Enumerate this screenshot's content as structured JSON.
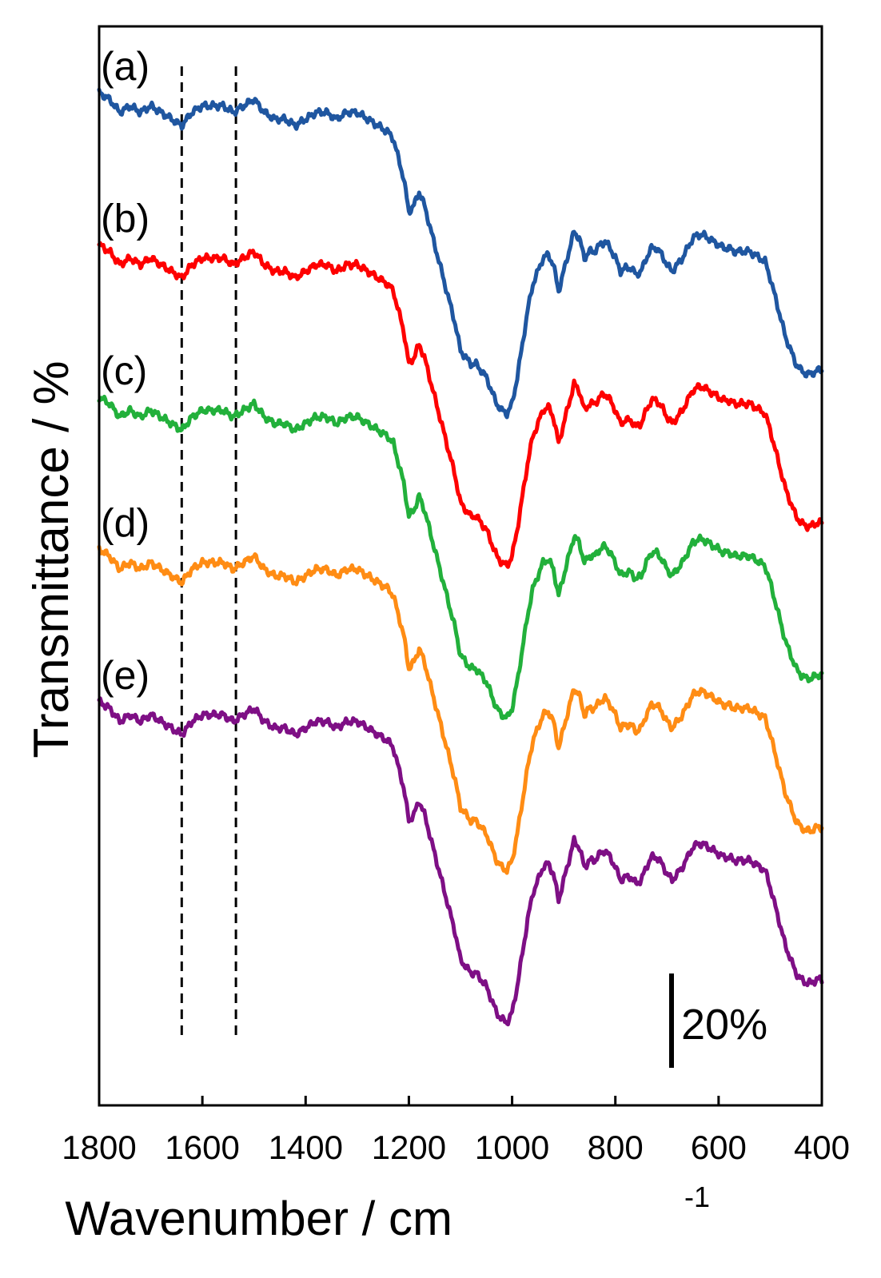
{
  "chart_data": {
    "type": "line",
    "xlabel": "Wavenumber / cm",
    "xlabel_sup": "-1",
    "ylabel": "Transmittance / %",
    "xlim": [
      1800,
      400
    ],
    "x_reversed": true,
    "x_ticks": [
      1800,
      1600,
      1400,
      1200,
      1000,
      800,
      600,
      400
    ],
    "x_tick_labels": [
      "1800",
      "1600",
      "1400",
      "1200",
      "1000",
      "800",
      "600",
      "400"
    ],
    "y_ticks_shown": false,
    "grid": false,
    "reference_lines": [
      1640,
      1535
    ],
    "scale_bar": {
      "label": "20%",
      "value": 20
    },
    "offset_per_series": 23,
    "baseline": [
      [
        1800,
        96
      ],
      [
        1780,
        95
      ],
      [
        1760,
        93
      ],
      [
        1740,
        94
      ],
      [
        1720,
        93
      ],
      [
        1700,
        94
      ],
      [
        1680,
        93
      ],
      [
        1660,
        92
      ],
      [
        1640,
        91
      ],
      [
        1620,
        93
      ],
      [
        1600,
        94
      ],
      [
        1580,
        94
      ],
      [
        1560,
        94
      ],
      [
        1540,
        93
      ],
      [
        1520,
        94
      ],
      [
        1500,
        95
      ],
      [
        1480,
        93
      ],
      [
        1460,
        92
      ],
      [
        1440,
        92
      ],
      [
        1420,
        91
      ],
      [
        1400,
        92
      ],
      [
        1380,
        93
      ],
      [
        1360,
        93
      ],
      [
        1340,
        92
      ],
      [
        1320,
        93
      ],
      [
        1300,
        93
      ],
      [
        1280,
        92
      ],
      [
        1260,
        91
      ],
      [
        1240,
        90
      ],
      [
        1230,
        89
      ],
      [
        1220,
        86
      ],
      [
        1210,
        83
      ],
      [
        1200,
        78
      ],
      [
        1190,
        79
      ],
      [
        1180,
        81
      ],
      [
        1170,
        79
      ],
      [
        1160,
        76
      ],
      [
        1150,
        73
      ],
      [
        1140,
        70
      ],
      [
        1130,
        67
      ],
      [
        1120,
        64
      ],
      [
        1110,
        61
      ],
      [
        1100,
        57
      ],
      [
        1090,
        56
      ],
      [
        1080,
        55
      ],
      [
        1070,
        55
      ],
      [
        1060,
        54
      ],
      [
        1050,
        53
      ],
      [
        1040,
        51
      ],
      [
        1030,
        49
      ],
      [
        1020,
        48
      ],
      [
        1010,
        47.5
      ],
      [
        1000,
        49
      ],
      [
        990,
        53
      ],
      [
        980,
        58
      ],
      [
        970,
        63
      ],
      [
        960,
        67
      ],
      [
        950,
        69
      ],
      [
        940,
        71
      ],
      [
        930,
        71.5
      ],
      [
        920,
        70
      ],
      [
        910,
        66
      ],
      [
        900,
        69
      ],
      [
        890,
        72
      ],
      [
        880,
        75
      ],
      [
        870,
        74
      ],
      [
        860,
        71
      ],
      [
        850,
        72
      ],
      [
        840,
        72
      ],
      [
        830,
        73
      ],
      [
        820,
        73.5
      ],
      [
        810,
        72.5
      ],
      [
        800,
        71
      ],
      [
        790,
        69
      ],
      [
        780,
        69.5
      ],
      [
        770,
        69.5
      ],
      [
        760,
        68.5
      ],
      [
        750,
        69
      ],
      [
        740,
        71
      ],
      [
        730,
        72.5
      ],
      [
        720,
        72.5
      ],
      [
        710,
        71.5
      ],
      [
        700,
        70
      ],
      [
        690,
        69
      ],
      [
        680,
        70
      ],
      [
        670,
        71
      ],
      [
        660,
        72.5
      ],
      [
        650,
        74
      ],
      [
        640,
        74.5
      ],
      [
        630,
        74.5
      ],
      [
        620,
        74
      ],
      [
        610,
        73.5
      ],
      [
        600,
        73
      ],
      [
        590,
        72.5
      ],
      [
        580,
        72.5
      ],
      [
        570,
        72
      ],
      [
        560,
        72
      ],
      [
        550,
        72
      ],
      [
        540,
        72
      ],
      [
        530,
        71.5
      ],
      [
        520,
        71
      ],
      [
        510,
        70.5
      ],
      [
        500,
        68
      ],
      [
        490,
        65
      ],
      [
        480,
        62
      ],
      [
        470,
        59
      ],
      [
        460,
        57
      ],
      [
        450,
        55
      ],
      [
        440,
        54
      ],
      [
        430,
        53.5
      ],
      [
        420,
        53.5
      ],
      [
        410,
        54
      ],
      [
        400,
        54
      ]
    ],
    "series": [
      {
        "name": "(a)",
        "color": "#1f56a0",
        "offset": 92,
        "seed": 1
      },
      {
        "name": "(b)",
        "color": "#fe0000",
        "offset": 69,
        "seed": 2
      },
      {
        "name": "(c)",
        "color": "#22b03b",
        "offset": 46,
        "seed": 3
      },
      {
        "name": "(d)",
        "color": "#ff8c14",
        "offset": 23,
        "seed": 4
      },
      {
        "name": "(e)",
        "color": "#7e0f85",
        "offset": 0,
        "seed": 5
      }
    ],
    "ylim": [
      35,
      198
    ]
  }
}
